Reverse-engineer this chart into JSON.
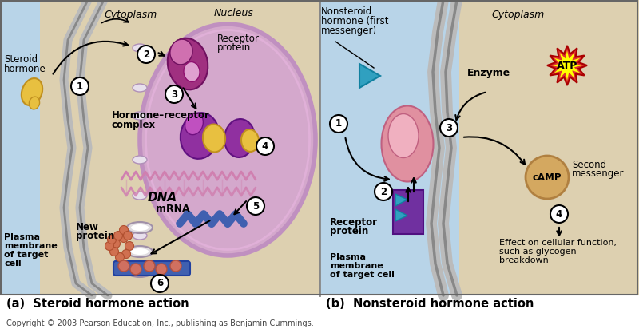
{
  "bg_left_blue": "#b8d4e8",
  "bg_left_tan": "#ddd0b0",
  "bg_right_tan": "#ddd0b0",
  "bg_right_blue": "#b8d4e8",
  "nucleus_fill": "#d4a8cc",
  "nucleus_edge": "#b080b0",
  "membrane_fill": "#d0d0d0",
  "membrane_edge": "#aaaaaa",
  "hormone_yellow": "#e8c040",
  "hormone_edge": "#c09020",
  "receptor_purple": "#a03080",
  "receptor_light": "#d070b0",
  "complex_purple": "#9030a0",
  "complex_yellow": "#e8c040",
  "dna_color": "#d080b0",
  "mrna_color": "#4060b0",
  "bead_color": "#d07050",
  "bead_edge": "#b05030",
  "pink_receptor": "#e090a0",
  "pink_receptor_edge": "#c06080",
  "purple_box": "#7030a0",
  "purple_box_edge": "#501080",
  "blue_arrow": "#30a0c0",
  "camp_color": "#d4a860",
  "camp_edge": "#b08040",
  "atp_red": "#e03030",
  "atp_yellow": "#ffff00",
  "white": "#ffffff",
  "black": "#000000",
  "title_a": "(a)  Steroid hormone action",
  "title_b": "(b)  Nonsteroid hormone action",
  "copyright": "Copyright © 2003 Pearson Education, Inc., publishing as Benjamin Cummings."
}
